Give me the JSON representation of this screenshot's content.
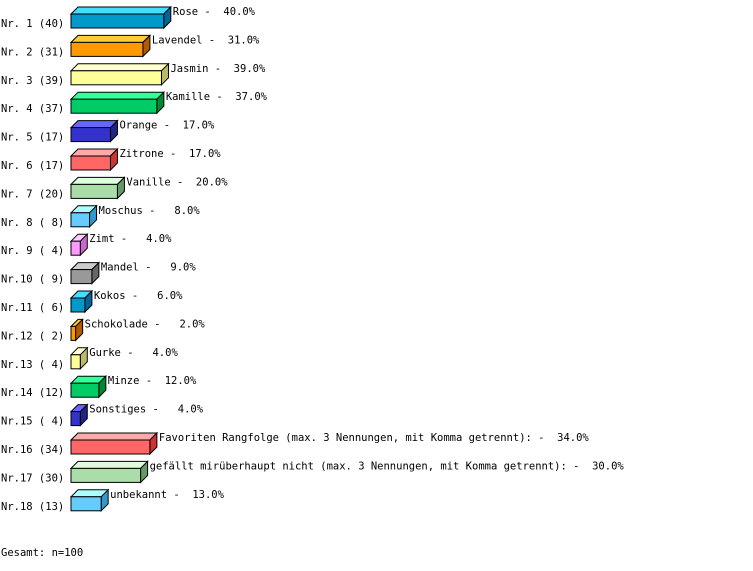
{
  "chart_data": {
    "type": "bar",
    "orientation": "horizontal",
    "style": "3d",
    "unit": "%",
    "categories": [
      "Rose",
      "Lavendel",
      "Jasmin",
      "Kamille",
      "Orange",
      "Zitrone",
      "Vanille",
      "Moschus",
      "Zimt",
      "Mandel",
      "Kokos",
      "Schokolade",
      "Gurke",
      "Minze",
      "Sonstiges",
      "Favoriten Rangfolge (max. 3 Nennungen, mit Komma getrennt):",
      "gefällt mirüberhaupt nicht (max. 3 Nennungen, mit Komma getrennt):",
      "unbekannt"
    ],
    "row_labels": [
      "Nr. 1 (40)",
      "Nr. 2 (31)",
      "Nr. 3 (39)",
      "Nr. 4 (37)",
      "Nr. 5 (17)",
      "Nr. 6 (17)",
      "Nr. 7 (20)",
      "Nr. 8 ( 8)",
      "Nr. 9 ( 4)",
      "Nr.10 ( 9)",
      "Nr.11 ( 6)",
      "Nr.12 ( 2)",
      "Nr.13 ( 4)",
      "Nr.14 (12)",
      "Nr.15 ( 4)",
      "Nr.16 (34)",
      "Nr.17 (30)",
      "Nr.18 (13)"
    ],
    "counts": [
      40,
      31,
      39,
      37,
      17,
      17,
      20,
      8,
      4,
      9,
      6,
      2,
      4,
      12,
      4,
      34,
      30,
      13
    ],
    "values": [
      40.0,
      31.0,
      39.0,
      37.0,
      17.0,
      17.0,
      20.0,
      8.0,
      4.0,
      9.0,
      6.0,
      2.0,
      4.0,
      12.0,
      4.0,
      34.0,
      30.0,
      13.0
    ],
    "value_labels": [
      "Rose -  40.0%",
      "Lavendel -  31.0%",
      "Jasmin -  39.0%",
      "Kamille -  37.0%",
      "Orange -  17.0%",
      "Zitrone -  17.0%",
      "Vanille -  20.0%",
      "Moschus -   8.0%",
      "Zimt -   4.0%",
      "Mandel -   9.0%",
      "Kokos -   6.0%",
      "Schokolade -   2.0%",
      "Gurke -   4.0%",
      "Minze -  12.0%",
      "Sonstiges -   4.0%",
      "Favoriten Rangfolge (max. 3 Nennungen, mit Komma getrennt): -  34.0%",
      "gefällt mirüberhaupt nicht (max. 3 Nennungen, mit Komma getrennt): -  30.0%",
      "unbekannt -  13.0%"
    ],
    "colors": [
      "#0099cc",
      "#ff9900",
      "#ffff99",
      "#00cc66",
      "#3333cc",
      "#ff6666",
      "#aaddaa",
      "#66ccff",
      "#ff99ff",
      "#999999",
      "#0099cc",
      "#ff9900",
      "#ffff99",
      "#00cc66",
      "#3333cc",
      "#ff6666",
      "#aaddaa",
      "#66ccff"
    ],
    "top_colors": [
      "#44ddff",
      "#ffcc33",
      "#ffffcc",
      "#33ff99",
      "#6666ff",
      "#ffaaaa",
      "#ddffdd",
      "#aaffff",
      "#ffccff",
      "#cccccc",
      "#44ddff",
      "#ffcc33",
      "#ffffcc",
      "#33ff99",
      "#6666ff",
      "#ffaaaa",
      "#ddffdd",
      "#aaffff"
    ],
    "side_colors": [
      "#006699",
      "#b35900",
      "#bbbb66",
      "#008833",
      "#222288",
      "#cc3333",
      "#669966",
      "#3399cc",
      "#cc66cc",
      "#666666",
      "#006699",
      "#b35900",
      "#bbbb66",
      "#008833",
      "#222288",
      "#cc3333",
      "#669966",
      "#3399cc"
    ],
    "xlim": [
      0,
      100
    ],
    "grid": false,
    "legend": "none"
  },
  "footer": "Gesamt: n=100"
}
